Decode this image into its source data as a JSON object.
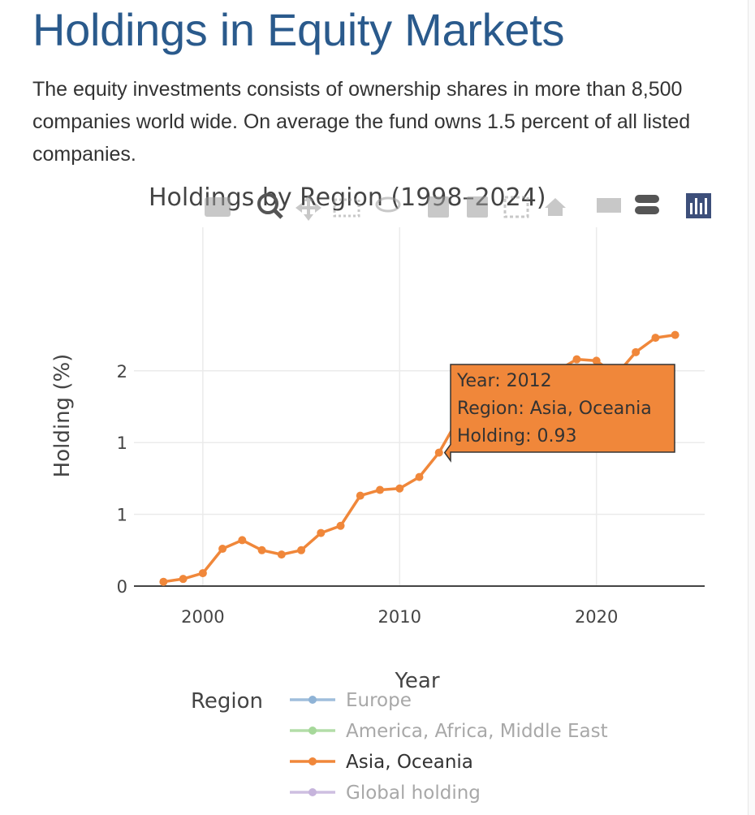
{
  "page": {
    "title": "Holdings in Equity Markets",
    "intro": "The equity investments consists of ownership shares in more than 8,500 companies world wide. On average the fund owns 1.5 percent of all listed companies."
  },
  "modebar": {
    "icons": [
      "camera-icon",
      "zoom-icon",
      "pan-icon",
      "box-select-icon",
      "lasso-icon",
      "zoom-in-icon",
      "zoom-out-icon",
      "autoscale-icon",
      "reset-axes-icon",
      "spike-lines-icon",
      "compare-hover-icon",
      "plotly-logo-icon"
    ]
  },
  "chart_data": {
    "type": "line",
    "title": "Holdings by Region (1998–2024)",
    "xlabel": "Year",
    "ylabel": "Holding (%)",
    "xlim": [
      1996.5,
      2025.5
    ],
    "ylim": [
      0,
      2.5
    ],
    "xticks": [
      2000,
      2010,
      2020
    ],
    "yticks": [
      {
        "value": 0,
        "label": "0"
      },
      {
        "value": 0.5,
        "label": "1"
      },
      {
        "value": 1.0,
        "label": "1"
      },
      {
        "value": 1.5,
        "label": "2"
      }
    ],
    "grid": true,
    "legend": {
      "title": "Region",
      "placement": "bottom",
      "entries": [
        {
          "name": "Europe",
          "color": "#8fb3d6",
          "active": false
        },
        {
          "name": "America, Africa, Middle East",
          "color": "#a6d89a",
          "active": false
        },
        {
          "name": "Asia, Oceania",
          "color": "#f0873a",
          "active": true
        },
        {
          "name": "Global holding",
          "color": "#c6b4dc",
          "active": false
        }
      ]
    },
    "series": [
      {
        "name": "Asia, Oceania",
        "color": "#f0873a",
        "x": [
          1998,
          1999,
          2000,
          2001,
          2002,
          2003,
          2004,
          2005,
          2006,
          2007,
          2008,
          2009,
          2010,
          2011,
          2012,
          2013,
          2014,
          2015,
          2016,
          2017,
          2018,
          2019,
          2020,
          2021,
          2022,
          2023,
          2024
        ],
        "y": [
          0.03,
          0.05,
          0.09,
          0.26,
          0.32,
          0.25,
          0.22,
          0.25,
          0.37,
          0.42,
          0.63,
          0.67,
          0.68,
          0.76,
          0.93,
          1.17,
          1.29,
          1.35,
          1.4,
          1.48,
          1.5,
          1.58,
          1.57,
          1.47,
          1.63,
          1.73,
          1.75
        ]
      }
    ],
    "tooltip": {
      "year_label": "Year: 2012",
      "region_label": "Region: Asia, Oceania",
      "holding_label": "Holding: 0.93",
      "x": 2012,
      "y": 0.93
    }
  }
}
